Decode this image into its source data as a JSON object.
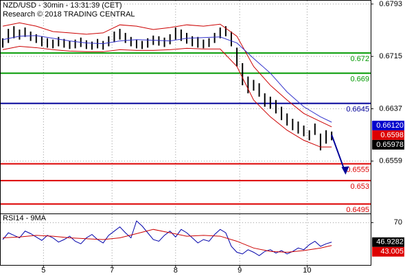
{
  "chart_data": [
    {
      "type": "ohlc",
      "title": "NZD/USD - 30min - 13:31:39 (CET)",
      "subtitle": "Research © 2018 TRADING CENTRAL",
      "ylim": [
        0.6481,
        0.6799
      ],
      "yticks": [
        0.6793,
        0.6715,
        0.6637,
        0.6559
      ],
      "grid": true,
      "color": "#000000",
      "highs": [
        0.6742,
        0.6756,
        0.676,
        0.6755,
        0.6758,
        0.6752,
        0.6748,
        0.6745,
        0.6742,
        0.674,
        0.6744,
        0.6741,
        0.6738,
        0.674,
        0.6743,
        0.6739,
        0.6737,
        0.6741,
        0.6738,
        0.6745,
        0.6752,
        0.6756,
        0.675,
        0.6744,
        0.674,
        0.6738,
        0.6742,
        0.6746,
        0.6745,
        0.6743,
        0.6748,
        0.6758,
        0.6755,
        0.675,
        0.6745,
        0.6744,
        0.674,
        0.6742,
        0.675,
        0.6758,
        0.676,
        0.6752,
        0.6728,
        0.6705,
        0.6685,
        0.668,
        0.6675,
        0.666,
        0.6655,
        0.665,
        0.664,
        0.663,
        0.6622,
        0.6618,
        0.6612,
        0.6605,
        0.6615,
        0.66,
        0.6605,
        0.6603
      ],
      "lows": [
        0.6728,
        0.6735,
        0.6742,
        0.674,
        0.6744,
        0.6738,
        0.6735,
        0.673,
        0.6728,
        0.6727,
        0.673,
        0.6728,
        0.6726,
        0.6727,
        0.6729,
        0.6726,
        0.6725,
        0.6727,
        0.6725,
        0.673,
        0.6736,
        0.674,
        0.6735,
        0.673,
        0.6727,
        0.6726,
        0.6728,
        0.6732,
        0.6731,
        0.6729,
        0.6733,
        0.674,
        0.6738,
        0.6734,
        0.673,
        0.6728,
        0.6727,
        0.6729,
        0.6735,
        0.6742,
        0.6745,
        0.673,
        0.67,
        0.6672,
        0.666,
        0.6664,
        0.6655,
        0.664,
        0.6637,
        0.663,
        0.662,
        0.6612,
        0.6605,
        0.66,
        0.6596,
        0.659,
        0.6598,
        0.6575,
        0.6585,
        0.659
      ],
      "upper_band": {
        "color": "#cc0000",
        "x": [
          0,
          3,
          6,
          9,
          12,
          15,
          18,
          21,
          24,
          27,
          30,
          33,
          36,
          39,
          42,
          45,
          48,
          51,
          54,
          57,
          59
        ],
        "values": [
          0.676,
          0.6765,
          0.676,
          0.6752,
          0.675,
          0.6748,
          0.675,
          0.6762,
          0.676,
          0.6755,
          0.6758,
          0.6762,
          0.676,
          0.6763,
          0.6745,
          0.67,
          0.6672,
          0.665,
          0.663,
          0.6618,
          0.661
        ]
      },
      "lower_band": {
        "color": "#cc0000",
        "x": [
          0,
          3,
          6,
          9,
          12,
          15,
          18,
          21,
          24,
          27,
          30,
          33,
          36,
          39,
          42,
          45,
          48,
          51,
          54,
          57,
          59
        ],
        "values": [
          0.6725,
          0.673,
          0.6728,
          0.6725,
          0.6723,
          0.6722,
          0.6722,
          0.6725,
          0.6724,
          0.6724,
          0.6725,
          0.6727,
          0.6726,
          0.6726,
          0.67,
          0.665,
          0.6625,
          0.6605,
          0.659,
          0.658,
          0.658
        ]
      },
      "moving_average": {
        "color": "#3333cc",
        "x": [
          0,
          3,
          6,
          9,
          12,
          15,
          18,
          21,
          24,
          27,
          30,
          33,
          36,
          39,
          42,
          45,
          48,
          51,
          54,
          57,
          59
        ],
        "values": [
          0.674,
          0.6745,
          0.6746,
          0.6742,
          0.6738,
          0.6735,
          0.6734,
          0.6738,
          0.674,
          0.6739,
          0.6738,
          0.6742,
          0.6743,
          0.6744,
          0.6735,
          0.6712,
          0.669,
          0.6662,
          0.664,
          0.6625,
          0.6617
        ]
      },
      "forecast": {
        "color": "#000099",
        "x": [
          59,
          61.5
        ],
        "values": [
          0.6598,
          0.6541
        ]
      },
      "levels": [
        {
          "value": 0.672,
          "color": "#009900"
        },
        {
          "value": 0.669,
          "color": "#009900"
        },
        {
          "value": 0.6645,
          "color": "#000099"
        },
        {
          "value": 0.6555,
          "color": "#dd0000"
        },
        {
          "value": 0.653,
          "color": "#dd0000"
        },
        {
          "value": 0.6495,
          "color": "#dd0000"
        }
      ],
      "markers": [
        {
          "value": 0.6612,
          "label": "0.66120",
          "color": "#0000cc"
        },
        {
          "value": 0.6598,
          "color": "#dd0000"
        },
        {
          "value": 0.65978,
          "color": "#000000"
        }
      ]
    },
    {
      "type": "line",
      "title": "RSI14 - 9MA",
      "ylim": [
        20,
        80
      ],
      "yticks": [
        70
      ],
      "xlim": [
        -0.5,
        66
      ],
      "xticks": [
        {
          "value": 7.3,
          "label": "5"
        },
        {
          "value": 19.6,
          "label": "7"
        },
        {
          "value": 31,
          "label": "8"
        },
        {
          "value": 42.5,
          "label": "9"
        },
        {
          "value": 54.6,
          "label": "10"
        }
      ],
      "grid": true,
      "series": [
        {
          "color": "#0000aa",
          "values": [
            50,
            58,
            55,
            52,
            60,
            57,
            53,
            49,
            55,
            52,
            47,
            50,
            54,
            48,
            45,
            52,
            56,
            50,
            46,
            55,
            60,
            65,
            58,
            52,
            72,
            66,
            58,
            50,
            48,
            55,
            60,
            53,
            62,
            58,
            52,
            46,
            50,
            48,
            56,
            62,
            58,
            42,
            35,
            33,
            38,
            35,
            31,
            36,
            38,
            34,
            37,
            33,
            36,
            40,
            38,
            44,
            48,
            42,
            45,
            46.9282
          ]
        },
        {
          "color": "#cc0000",
          "x": [
            0,
            3,
            6,
            9,
            12,
            15,
            18,
            21,
            24,
            27,
            30,
            33,
            36,
            39,
            42,
            45,
            48,
            51,
            54,
            57,
            59
          ],
          "values": [
            52,
            53,
            55,
            54,
            52,
            51,
            50,
            52,
            57,
            62,
            58,
            54,
            55,
            54,
            48,
            40,
            36,
            35,
            37,
            40,
            43.005
          ]
        }
      ],
      "markers": [
        {
          "value": 46.9282,
          "color": "#000000"
        },
        {
          "value": 43.005,
          "color": "#dd0000"
        }
      ]
    }
  ]
}
